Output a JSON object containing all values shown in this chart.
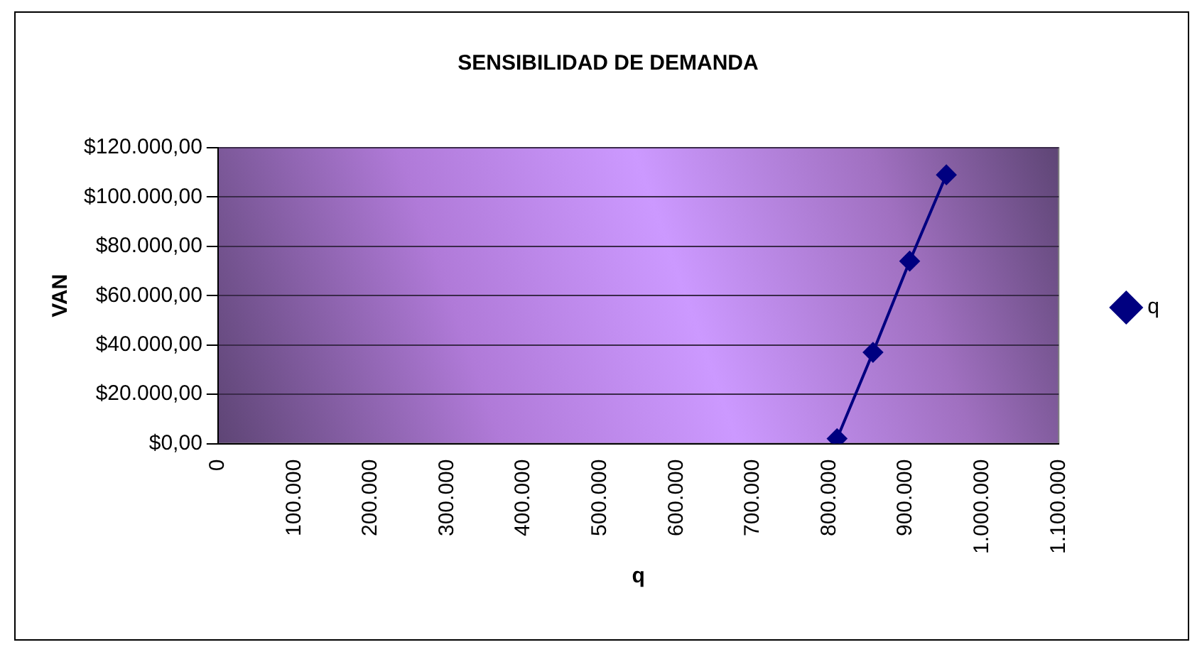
{
  "chart_data": {
    "type": "line",
    "title": "SENSIBILIDAD DE DEMANDA",
    "xlabel": "q",
    "ylabel": "VAN",
    "series": [
      {
        "name": "q",
        "color": "#000080",
        "x": [
          810000,
          857000,
          905000,
          953000
        ],
        "values": [
          2000,
          37000,
          74000,
          109000
        ]
      }
    ],
    "xlim": [
      0,
      1100000
    ],
    "xticks": [
      0,
      {
        "value": 100000,
        "label": "100.000"
      },
      {
        "value": 200000,
        "label": "200.000"
      },
      {
        "value": 300000,
        "label": "300.000"
      },
      {
        "value": 400000,
        "label": "400.000"
      },
      {
        "value": 500000,
        "label": "500.000"
      },
      {
        "value": 600000,
        "label": "600.000"
      },
      {
        "value": 700000,
        "label": "700.000"
      },
      {
        "value": 800000,
        "label": "800.000"
      },
      {
        "value": 900000,
        "label": "900.000"
      },
      {
        "value": 1000000,
        "label": "1.000.000"
      },
      {
        "value": 1100000,
        "label": "1.100.000"
      }
    ],
    "ylim": [
      0,
      120000
    ],
    "yticks": [
      {
        "value": 0,
        "label": "$0,00"
      },
      {
        "value": 20000,
        "label": "$20.000,00"
      },
      {
        "value": 40000,
        "label": "$40.000,00"
      },
      {
        "value": 60000,
        "label": "$60.000,00"
      },
      {
        "value": 80000,
        "label": "$80.000,00"
      },
      {
        "value": 100000,
        "label": "$100.000,00"
      },
      {
        "value": 120000,
        "label": "$120.000,00"
      }
    ],
    "grid": "y",
    "legend": "right",
    "marker": "diamond",
    "line_style": "solid"
  }
}
